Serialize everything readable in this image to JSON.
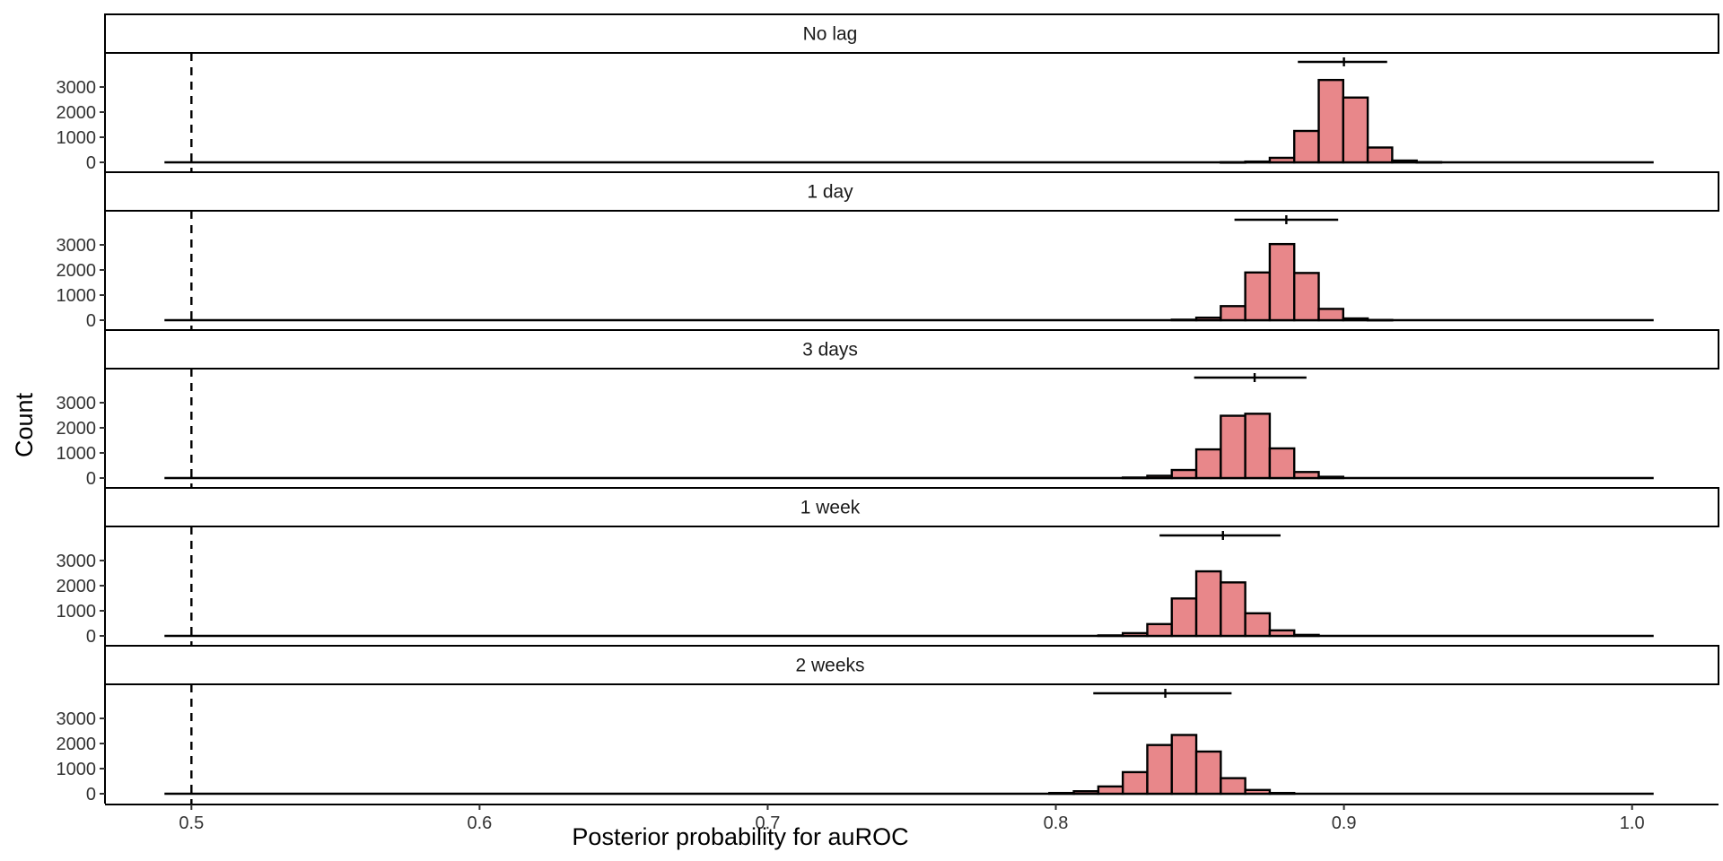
{
  "chart_data": {
    "type": "bar",
    "facet_type": "histogram",
    "xlabel": "Posterior probability for auROC",
    "ylabel": "Count",
    "xlim": [
      0.47,
      1.03
    ],
    "x_ticks": [
      0.5,
      0.6,
      0.7,
      0.8,
      0.9,
      1.0
    ],
    "x_tick_labels": [
      "0.5",
      "0.6",
      "0.7",
      "0.8",
      "0.9",
      "1.0"
    ],
    "ylim": [
      0,
      3900
    ],
    "y_ticks": [
      0,
      1000,
      2000,
      3000
    ],
    "y_tick_labels": [
      "0",
      "1000",
      "2000",
      "3000"
    ],
    "reference_x": 0.5,
    "bin_width": 0.0085,
    "bar_fill": "#E8878A",
    "bar_stroke": "#000000",
    "grid": false,
    "facets": [
      {
        "label": "No lag",
        "ci": {
          "lower": 0.884,
          "mid": 0.9,
          "upper": 0.915
        },
        "bins": [
          {
            "x": 0.8615,
            "count": 5
          },
          {
            "x": 0.87,
            "count": 30
          },
          {
            "x": 0.8785,
            "count": 180
          },
          {
            "x": 0.887,
            "count": 1250
          },
          {
            "x": 0.8955,
            "count": 3280
          },
          {
            "x": 0.904,
            "count": 2580
          },
          {
            "x": 0.9125,
            "count": 590
          },
          {
            "x": 0.921,
            "count": 70
          },
          {
            "x": 0.9295,
            "count": 10
          }
        ]
      },
      {
        "label": "1 day",
        "ci": {
          "lower": 0.862,
          "mid": 0.88,
          "upper": 0.898
        },
        "bins": [
          {
            "x": 0.8445,
            "count": 20
          },
          {
            "x": 0.853,
            "count": 100
          },
          {
            "x": 0.8615,
            "count": 560
          },
          {
            "x": 0.87,
            "count": 1900
          },
          {
            "x": 0.8785,
            "count": 3030
          },
          {
            "x": 0.887,
            "count": 1880
          },
          {
            "x": 0.8955,
            "count": 450
          },
          {
            "x": 0.904,
            "count": 70
          },
          {
            "x": 0.9125,
            "count": 10
          }
        ]
      },
      {
        "label": "3 days",
        "ci": {
          "lower": 0.848,
          "mid": 0.869,
          "upper": 0.887
        },
        "bins": [
          {
            "x": 0.8275,
            "count": 20
          },
          {
            "x": 0.836,
            "count": 90
          },
          {
            "x": 0.8445,
            "count": 320
          },
          {
            "x": 0.853,
            "count": 1140
          },
          {
            "x": 0.8615,
            "count": 2480
          },
          {
            "x": 0.87,
            "count": 2560
          },
          {
            "x": 0.8785,
            "count": 1180
          },
          {
            "x": 0.887,
            "count": 240
          },
          {
            "x": 0.8955,
            "count": 50
          }
        ]
      },
      {
        "label": "1 week",
        "ci": {
          "lower": 0.836,
          "mid": 0.858,
          "upper": 0.878
        },
        "bins": [
          {
            "x": 0.819,
            "count": 20
          },
          {
            "x": 0.8275,
            "count": 110
          },
          {
            "x": 0.836,
            "count": 470
          },
          {
            "x": 0.8445,
            "count": 1490
          },
          {
            "x": 0.853,
            "count": 2570
          },
          {
            "x": 0.8615,
            "count": 2130
          },
          {
            "x": 0.87,
            "count": 900
          },
          {
            "x": 0.8785,
            "count": 220
          },
          {
            "x": 0.887,
            "count": 40
          }
        ]
      },
      {
        "label": "2 weeks",
        "ci": {
          "lower": 0.813,
          "mid": 0.838,
          "upper": 0.861
        },
        "bins": [
          {
            "x": 0.802,
            "count": 30
          },
          {
            "x": 0.8105,
            "count": 100
          },
          {
            "x": 0.819,
            "count": 290
          },
          {
            "x": 0.8275,
            "count": 860
          },
          {
            "x": 0.836,
            "count": 1940
          },
          {
            "x": 0.8445,
            "count": 2340
          },
          {
            "x": 0.853,
            "count": 1680
          },
          {
            "x": 0.8615,
            "count": 620
          },
          {
            "x": 0.87,
            "count": 150
          },
          {
            "x": 0.8785,
            "count": 30
          }
        ]
      }
    ]
  }
}
